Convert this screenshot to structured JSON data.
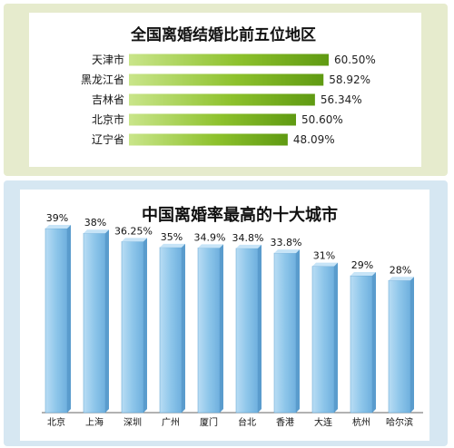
{
  "chart_data": [
    {
      "type": "bar",
      "orientation": "horizontal",
      "title": "全国离婚结婚比前五位地区",
      "categories": [
        "天津市",
        "黑龙江省",
        "吉林省",
        "北京市",
        "辽宁省"
      ],
      "values": [
        60.5,
        58.92,
        56.34,
        50.6,
        48.09
      ],
      "labels": [
        "60.50%",
        "58.92%",
        "56.34%",
        "50.60%",
        "48.09%"
      ],
      "bar_color": "#8dc12c"
    },
    {
      "type": "bar",
      "title": "中国离婚率最高的十大城市",
      "categories": [
        "北京",
        "上海",
        "深圳",
        "广州",
        "厦门",
        "台北",
        "香港",
        "大连",
        "杭州",
        "哈尔滨"
      ],
      "values": [
        39,
        38,
        36.25,
        35,
        34.9,
        34.8,
        33.8,
        31,
        29,
        28
      ],
      "labels": [
        "39%",
        "38%",
        "36.25%",
        "35%",
        "34.9%",
        "34.8%",
        "33.8%",
        "31%",
        "29%",
        "28%"
      ],
      "bar_color": "#8ec6ea"
    }
  ]
}
